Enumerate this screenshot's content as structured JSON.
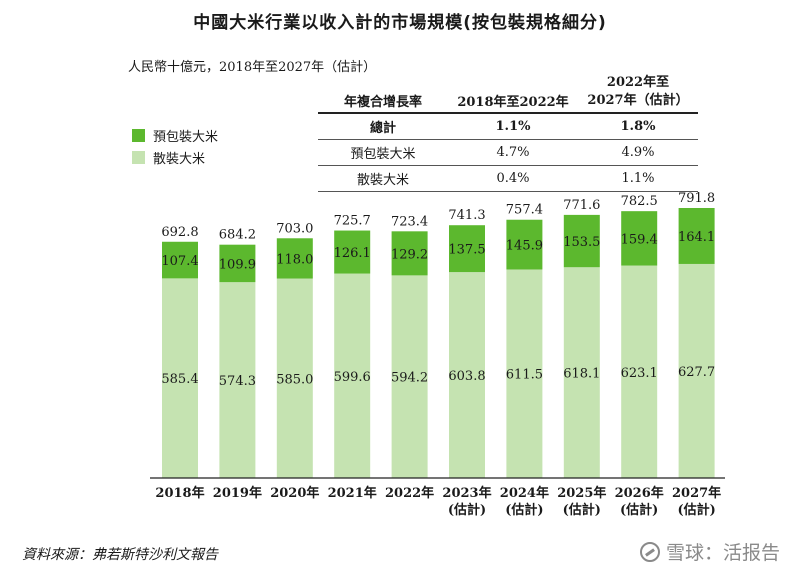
{
  "title": "中國大米行業以收入計的市場規模(按包裝規格細分)",
  "unit_label": "人民幣十億元，2018年至2027年（估計）",
  "legend": [
    {
      "label": "預包裝大米",
      "color": "#5cb82e"
    },
    {
      "label": "散裝大米",
      "color": "#c5e3b1"
    }
  ],
  "cagr_table": {
    "headers": [
      "年複合增長率",
      "2018年至2022年",
      "2022年至\n2027年（估計）"
    ],
    "rows": [
      {
        "label": "總計",
        "v1": "1.1%",
        "v2": "1.8%"
      },
      {
        "label": "預包裝大米",
        "v1": "4.7%",
        "v2": "4.9%"
      },
      {
        "label": "散裝大米",
        "v1": "0.4%",
        "v2": "1.1%"
      }
    ]
  },
  "chart_data": {
    "type": "bar",
    "stacked": true,
    "categories": [
      "2018年",
      "2019年",
      "2020年",
      "2021年",
      "2022年",
      "2023年\n(估計)",
      "2024年\n(估計)",
      "2025年\n(估計)",
      "2026年\n(估計)",
      "2027年\n(估計)"
    ],
    "series": [
      {
        "name": "散裝大米",
        "color": "#c5e3b1",
        "values": [
          585.4,
          574.3,
          585.0,
          599.6,
          594.2,
          603.8,
          611.5,
          618.1,
          623.1,
          627.7
        ]
      },
      {
        "name": "預包裝大米",
        "color": "#5cb82e",
        "values": [
          107.4,
          109.9,
          118.0,
          126.1,
          129.2,
          137.5,
          145.9,
          153.5,
          159.4,
          164.1
        ]
      }
    ],
    "totals": [
      692.8,
      684.2,
      703.0,
      725.7,
      723.4,
      741.3,
      757.4,
      771.6,
      782.5,
      791.8
    ],
    "ylim": [
      0,
      800
    ]
  },
  "source": "資料來源：弗若斯特沙利文報告",
  "watermark": "雪球：活报告"
}
